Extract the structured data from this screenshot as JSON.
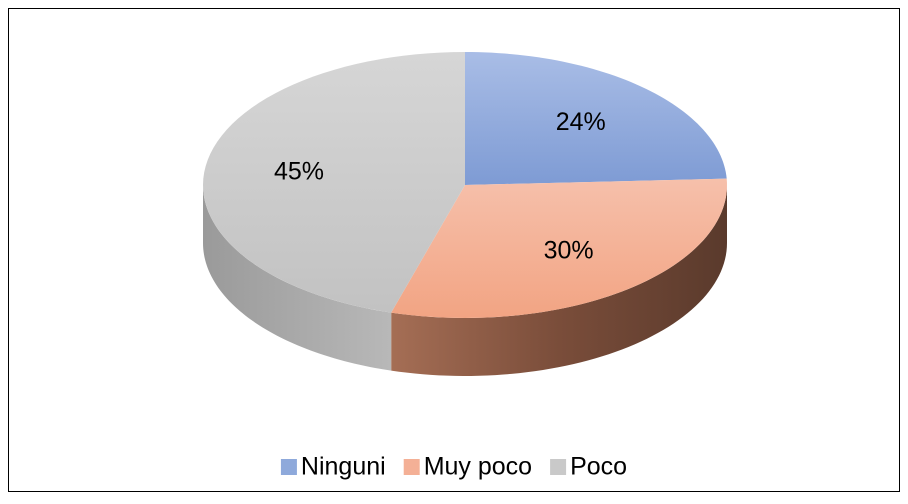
{
  "chart_data": {
    "type": "pie",
    "categories": [
      "Ninguni",
      "Muy poco",
      "Poco"
    ],
    "values": [
      24,
      30,
      45
    ],
    "value_labels": [
      "24%",
      "30%",
      "45%"
    ],
    "colors": [
      "#8ea9db",
      "#f4b096",
      "#c9c9c9"
    ],
    "legend": "bottom"
  }
}
